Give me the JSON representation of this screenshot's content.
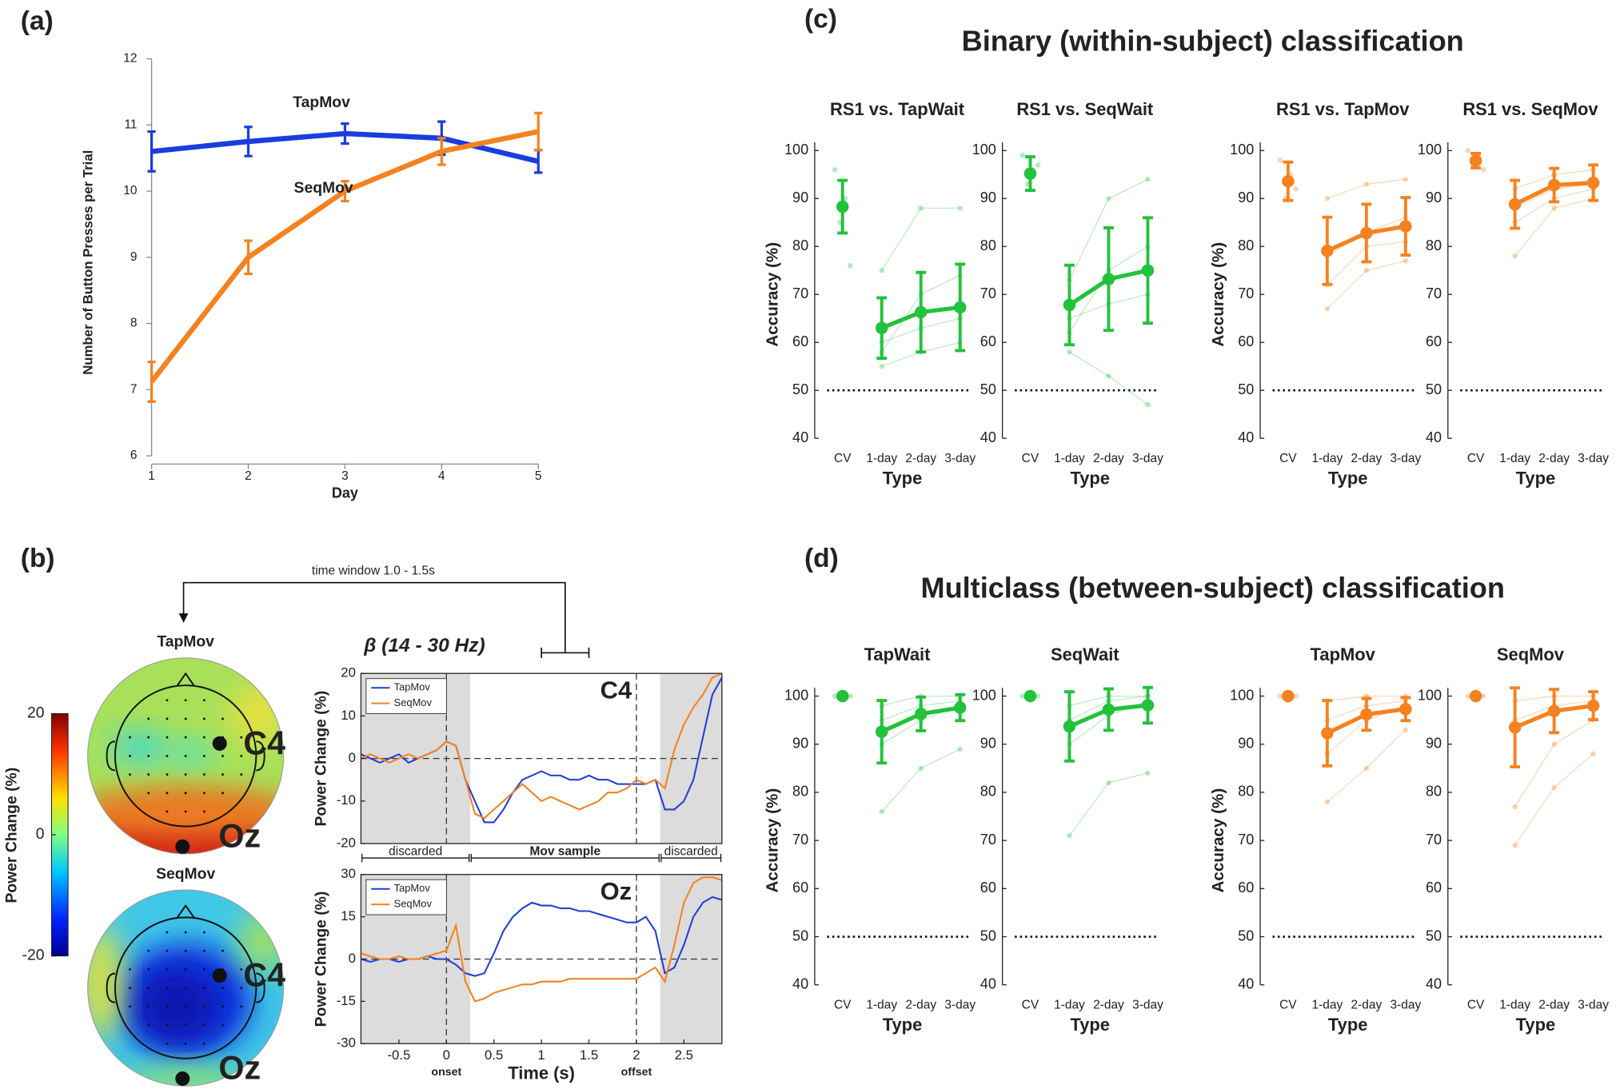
{
  "figure": {
    "panel_labels": [
      "(a)",
      "(b)",
      "(c)",
      "(d)"
    ],
    "group_titles": [
      "Binary (within-subject) classification",
      "Multiclass (between-subject) classification"
    ]
  },
  "chart_data": [
    {
      "type": "line",
      "x": [
        1,
        2,
        3,
        4,
        5
      ],
      "xlim": [
        1,
        5
      ],
      "xticks": [
        1,
        2,
        3,
        4,
        5
      ],
      "ylim": [
        6,
        12
      ],
      "yticks": [
        6,
        7,
        8,
        9,
        10,
        11,
        12
      ],
      "xlabel": "Day",
      "ylabel": "Number of Button Presses per Trial",
      "series": [
        {
          "name": "TapMov",
          "color": "#1a3de0",
          "values": [
            10.6,
            10.75,
            10.87,
            10.8,
            10.45
          ],
          "errors": [
            0.3,
            0.22,
            0.15,
            0.25,
            0.17
          ]
        },
        {
          "name": "SeqMov",
          "color": "#f5821f",
          "values": [
            7.12,
            9.0,
            10.0,
            10.6,
            10.9
          ],
          "errors": [
            0.3,
            0.25,
            0.15,
            0.2,
            0.28
          ]
        }
      ]
    },
    {
      "type": "timeseries",
      "title": "β (14 - 30 Hz)",
      "annotation": "C4",
      "xlim": [
        -0.9,
        2.9
      ],
      "ylim": [
        -20,
        20
      ],
      "yticks": [
        -20,
        -10,
        0,
        10,
        20
      ],
      "ylabel": "Power Change (%)",
      "hline": 0,
      "vlines": [
        0,
        2
      ],
      "shaded": [
        [
          -0.9,
          0.25
        ],
        [
          2.25,
          2.9
        ]
      ],
      "segments": [
        {
          "label": "discarded",
          "range": [
            -0.9,
            0.25
          ]
        },
        {
          "label": "Mov sample",
          "range": [
            0.25,
            2.25
          ]
        },
        {
          "label": "discarded",
          "range": [
            2.25,
            2.9
          ]
        }
      ],
      "time_window": {
        "label": "time window 1.0 - 1.5s",
        "range": [
          1.0,
          1.5
        ]
      },
      "x": [
        -0.9,
        -0.8,
        -0.7,
        -0.6,
        -0.5,
        -0.4,
        -0.3,
        -0.2,
        -0.1,
        0,
        0.1,
        0.2,
        0.3,
        0.4,
        0.5,
        0.6,
        0.7,
        0.8,
        0.9,
        1.0,
        1.1,
        1.2,
        1.3,
        1.4,
        1.5,
        1.6,
        1.7,
        1.8,
        1.9,
        2.0,
        2.1,
        2.2,
        2.3,
        2.4,
        2.5,
        2.6,
        2.7,
        2.8,
        2.9
      ],
      "series": [
        {
          "name": "TapMov",
          "color": "#1f3fd8",
          "values": [
            1,
            0,
            -1,
            0,
            1,
            -1,
            0,
            1,
            2,
            4,
            3,
            -5,
            -10,
            -15,
            -15,
            -12,
            -8,
            -5,
            -4,
            -3,
            -4,
            -4,
            -5,
            -5,
            -4,
            -5,
            -5,
            -6,
            -6,
            -6,
            -6,
            -5,
            -12,
            -12,
            -10,
            -5,
            5,
            15,
            19
          ]
        },
        {
          "name": "SeqMov",
          "color": "#f5821f",
          "values": [
            0,
            1,
            0,
            -1,
            0,
            1,
            0,
            1,
            2,
            4,
            3,
            -5,
            -13,
            -14,
            -12,
            -10,
            -8,
            -6,
            -8,
            -10,
            -9,
            -10,
            -11,
            -12,
            -11,
            -10,
            -8,
            -8,
            -7,
            -5,
            -6,
            -5,
            -7,
            2,
            8,
            12,
            15,
            19,
            20
          ]
        }
      ]
    },
    {
      "type": "timeseries",
      "annotation": "Oz",
      "xlim": [
        -0.9,
        2.9
      ],
      "ylim": [
        -30,
        30
      ],
      "yticks": [
        -30,
        -15,
        0,
        15,
        30
      ],
      "xticks": [
        -0.5,
        0,
        0.5,
        1,
        1.5,
        2,
        2.5
      ],
      "xlabel": "Time (s)",
      "ylabel": "Power Change (%)",
      "hline": 0,
      "vlines": [
        0,
        2
      ],
      "vline_labels": [
        "onset",
        "offset"
      ],
      "shaded": [
        [
          -0.9,
          0.25
        ],
        [
          2.25,
          2.9
        ]
      ],
      "x": [
        -0.9,
        -0.8,
        -0.7,
        -0.6,
        -0.5,
        -0.4,
        -0.3,
        -0.2,
        -0.1,
        0,
        0.1,
        0.2,
        0.3,
        0.4,
        0.5,
        0.6,
        0.7,
        0.8,
        0.9,
        1.0,
        1.1,
        1.2,
        1.3,
        1.4,
        1.5,
        1.6,
        1.7,
        1.8,
        1.9,
        2.0,
        2.1,
        2.2,
        2.3,
        2.4,
        2.5,
        2.6,
        2.7,
        2.8,
        2.9
      ],
      "series": [
        {
          "name": "TapMov",
          "color": "#1f3fd8",
          "values": [
            0,
            -1,
            0,
            0,
            -1,
            0,
            0,
            1,
            0,
            0,
            -2,
            -5,
            -6,
            -5,
            2,
            10,
            15,
            18,
            20,
            19,
            19,
            18,
            18,
            17,
            17,
            16,
            15,
            14,
            13,
            13,
            15,
            10,
            -5,
            -3,
            5,
            15,
            20,
            22,
            21
          ]
        },
        {
          "name": "SeqMov",
          "color": "#f5821f",
          "values": [
            2,
            1,
            0,
            0,
            1,
            0,
            0,
            1,
            2,
            3,
            12,
            -8,
            -15,
            -14,
            -12,
            -11,
            -10,
            -9,
            -9,
            -8,
            -8,
            -8,
            -7,
            -7,
            -7,
            -7,
            -7,
            -7,
            -7,
            -7,
            -5,
            -3,
            -8,
            5,
            20,
            27,
            29,
            29,
            28
          ]
        }
      ]
    },
    {
      "type": "topomap",
      "maps": [
        {
          "title": "TapMov",
          "color": "#1a3de0"
        },
        {
          "title": "SeqMov",
          "color": "#f5821f"
        }
      ],
      "electrodes": [
        "C4",
        "Oz"
      ],
      "colorbar": {
        "label": "Power Change (%)",
        "lim": [
          -20,
          20
        ],
        "ticks": [
          20,
          0,
          -20
        ]
      }
    },
    {
      "type": "dot_error",
      "title": "RS1 vs. TapWait",
      "ylabel": "Accuracy (%)",
      "xlabel": "Type",
      "categories": [
        "CV",
        "1-day",
        "2-day",
        "3-day"
      ],
      "ylim": [
        40,
        100
      ],
      "yticks": [
        40,
        50,
        60,
        70,
        80,
        90,
        100
      ],
      "hline": 50,
      "color": "#22c23a",
      "values": [
        88.3,
        63,
        66.3,
        67.3
      ],
      "errors": [
        5.5,
        6.3,
        8.3,
        9
      ],
      "subjects": [
        [
          96,
          75,
          88,
          88
        ],
        [
          85,
          60,
          63,
          65
        ],
        [
          90,
          55,
          58,
          60
        ],
        [
          76,
          58,
          70,
          74
        ]
      ]
    },
    {
      "type": "dot_error",
      "title": "RS1 vs. SeqWait",
      "xlabel": "Type",
      "categories": [
        "CV",
        "1-day",
        "2-day",
        "3-day"
      ],
      "ylim": [
        40,
        100
      ],
      "yticks": [
        40,
        50,
        60,
        70,
        80,
        90,
        100
      ],
      "hline": 50,
      "color": "#22c23a",
      "values": [
        95.2,
        67.8,
        73.2,
        75
      ],
      "errors": [
        3.5,
        8.3,
        10.7,
        11
      ],
      "subjects": [
        [
          99,
          73,
          90,
          94
        ],
        [
          93,
          65,
          68,
          70
        ],
        [
          96,
          58,
          53,
          47
        ],
        [
          97,
          62,
          75,
          80
        ]
      ]
    },
    {
      "type": "dot_error",
      "title": "RS1 vs. TapMov",
      "ylabel": "Accuracy (%)",
      "xlabel": "Type",
      "categories": [
        "CV",
        "1-day",
        "2-day",
        "3-day"
      ],
      "ylim": [
        40,
        100
      ],
      "yticks": [
        40,
        50,
        60,
        70,
        80,
        90,
        100
      ],
      "hline": 50,
      "color": "#f5821f",
      "values": [
        93.6,
        79.1,
        82.8,
        84.2
      ],
      "errors": [
        4,
        7,
        6,
        6
      ],
      "subjects": [
        [
          98,
          90,
          93,
          94
        ],
        [
          90,
          67,
          75,
          77
        ],
        [
          95,
          78,
          83,
          86
        ],
        [
          92,
          72,
          80,
          81
        ]
      ]
    },
    {
      "type": "dot_error",
      "title": "RS1 vs. SeqMov",
      "xlabel": "Type",
      "categories": [
        "CV",
        "1-day",
        "2-day",
        "3-day"
      ],
      "ylim": [
        40,
        100
      ],
      "yticks": [
        40,
        50,
        60,
        70,
        80,
        90,
        100
      ],
      "hline": 50,
      "color": "#f5821f",
      "values": [
        97.9,
        88.8,
        92.8,
        93.3
      ],
      "errors": [
        1.5,
        5,
        3.5,
        3.7
      ],
      "subjects": [
        [
          100,
          92,
          95,
          96
        ],
        [
          97,
          78,
          88,
          90
        ],
        [
          99,
          88,
          92,
          93
        ],
        [
          96,
          85,
          90,
          92
        ]
      ]
    },
    {
      "type": "dot_error",
      "title": "TapWait",
      "ylabel": "Accuracy (%)",
      "xlabel": "Type",
      "categories": [
        "CV",
        "1-day",
        "2-day",
        "3-day"
      ],
      "ylim": [
        40,
        100
      ],
      "yticks": [
        40,
        50,
        60,
        70,
        80,
        90,
        100
      ],
      "hline": 50,
      "color": "#22c23a",
      "values": [
        100,
        92.6,
        96.3,
        97.6
      ],
      "errors": [
        0,
        6.5,
        3.5,
        2.7
      ],
      "subjects": [
        [
          100,
          76,
          85,
          89
        ],
        [
          100,
          90,
          95,
          98
        ],
        [
          100,
          95,
          98,
          99
        ],
        [
          100,
          98,
          100,
          100
        ]
      ]
    },
    {
      "type": "dot_error",
      "title": "SeqWait",
      "xlabel": "Type",
      "categories": [
        "CV",
        "1-day",
        "2-day",
        "3-day"
      ],
      "ylim": [
        40,
        100
      ],
      "yticks": [
        40,
        50,
        60,
        70,
        80,
        90,
        100
      ],
      "hline": 50,
      "color": "#22c23a",
      "values": [
        100,
        93.7,
        97.2,
        98.1
      ],
      "errors": [
        0,
        7.2,
        4.3,
        3.7
      ],
      "subjects": [
        [
          100,
          71,
          82,
          84
        ],
        [
          100,
          90,
          96,
          99
        ],
        [
          100,
          95,
          99,
          100
        ],
        [
          100,
          98,
          100,
          100
        ]
      ]
    },
    {
      "type": "dot_error",
      "title": "TapMov",
      "ylabel": "Accuracy (%)",
      "xlabel": "Type",
      "categories": [
        "CV",
        "1-day",
        "2-day",
        "3-day"
      ],
      "ylim": [
        40,
        100
      ],
      "yticks": [
        40,
        50,
        60,
        70,
        80,
        90,
        100
      ],
      "hline": 50,
      "color": "#f5821f",
      "values": [
        100,
        92.3,
        96.2,
        97.3
      ],
      "errors": [
        0,
        6.8,
        3.3,
        2.4
      ],
      "subjects": [
        [
          100,
          78,
          85,
          93
        ],
        [
          100,
          88,
          95,
          98
        ],
        [
          100,
          95,
          98,
          99
        ],
        [
          100,
          99,
          100,
          100
        ]
      ]
    },
    {
      "type": "dot_error",
      "title": "SeqMov",
      "xlabel": "Type",
      "categories": [
        "CV",
        "1-day",
        "2-day",
        "3-day"
      ],
      "ylim": [
        40,
        100
      ],
      "yticks": [
        40,
        50,
        60,
        70,
        80,
        90,
        100
      ],
      "hline": 50,
      "color": "#f5821f",
      "values": [
        100,
        93.5,
        96.9,
        98
      ],
      "errors": [
        0,
        8.2,
        4.5,
        2.9
      ],
      "subjects": [
        [
          100,
          69,
          81,
          88
        ],
        [
          100,
          77,
          90,
          95
        ],
        [
          100,
          95,
          98,
          99
        ],
        [
          100,
          99,
          100,
          100
        ]
      ]
    }
  ]
}
